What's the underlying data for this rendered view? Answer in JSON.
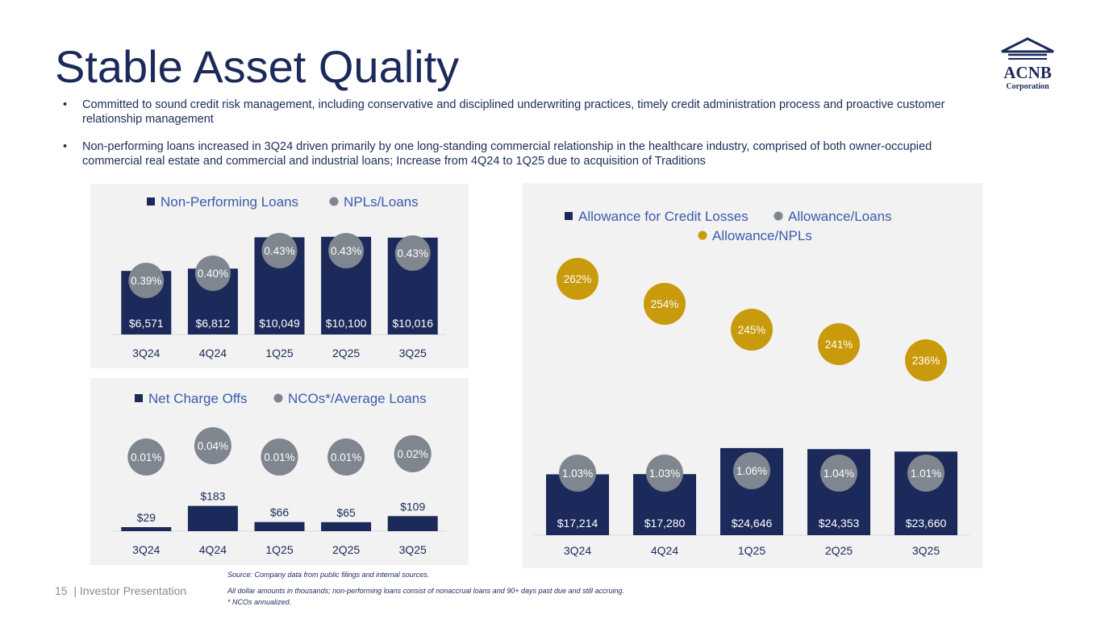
{
  "page": {
    "title": "Stable Asset Quality",
    "bullets": [
      "Committed to sound credit risk management, including conservative and disciplined underwriting practices, timely credit administration process and proactive customer relationship management",
      " Non-performing loans increased in 3Q24 driven primarily by one long-standing commercial relationship in the healthcare industry, comprised of both owner-occupied commercial real estate and commercial and industrial loans; Increase from 4Q24 to 1Q25 due to acquisition of Traditions"
    ],
    "logo": {
      "main": "ACNB",
      "sub": "Corporation"
    },
    "footer": {
      "page_label": "15  | Investor Presentation",
      "notes": [
        "Source: Company data from public filings and internal sources.",
        "All dollar amounts in thousands; non-performing loans consist of nonaccrual loans and 90+ days past due and still accruing.",
        "* NCOs annualized."
      ]
    },
    "colors": {
      "navy": "#1b2a5a",
      "gray_circle": "#7f868f",
      "gold": "#c99a0b",
      "panel_bg": "#f2f2f2"
    }
  },
  "chart_data": [
    {
      "id": "npl",
      "type": "bar",
      "categories": [
        "3Q24",
        "4Q24",
        "1Q25",
        "2Q25",
        "3Q25"
      ],
      "series": [
        {
          "name": "Non-Performing Loans",
          "kind": "bar",
          "values": [
            6571,
            6812,
            10049,
            10100,
            10016
          ],
          "labels": [
            "$6,571",
            "$6,812",
            "$10,049",
            "$10,100",
            "$10,016"
          ]
        },
        {
          "name": "NPLs/Loans",
          "kind": "circle",
          "values": [
            0.39,
            0.4,
            0.43,
            0.43,
            0.43
          ],
          "labels": [
            "0.39%",
            "0.40%",
            "0.43%",
            "0.43%",
            "0.43%"
          ]
        }
      ],
      "legend": "top",
      "ylim": [
        0,
        11000
      ]
    },
    {
      "id": "nco",
      "type": "bar",
      "categories": [
        "3Q24",
        "4Q24",
        "1Q25",
        "2Q25",
        "3Q25"
      ],
      "series": [
        {
          "name": "Net Charge Offs",
          "kind": "bar",
          "values": [
            29,
            183,
            66,
            65,
            109
          ],
          "labels": [
            "$29",
            "$183",
            "$66",
            "$65",
            "$109"
          ]
        },
        {
          "name": "NCOs*/Average Loans",
          "kind": "circle",
          "values": [
            0.01,
            0.04,
            0.01,
            0.01,
            0.02
          ],
          "labels": [
            "0.01%",
            "0.04%",
            "0.01%",
            "0.01%",
            "0.02%"
          ]
        }
      ],
      "legend": "top",
      "ylim": [
        0,
        700
      ]
    },
    {
      "id": "acl",
      "type": "bar",
      "categories": [
        "3Q24",
        "4Q24",
        "1Q25",
        "2Q25",
        "3Q25"
      ],
      "series": [
        {
          "name": "Allowance for Credit Losses",
          "kind": "bar",
          "values": [
            17214,
            17280,
            24646,
            24353,
            23660
          ],
          "labels": [
            "$17,214",
            "$17,280",
            "$24,646",
            "$24,353",
            "$23,660"
          ]
        },
        {
          "name": "Allowance/Loans",
          "kind": "circle",
          "values": [
            1.03,
            1.03,
            1.06,
            1.04,
            1.01
          ],
          "labels": [
            "1.03%",
            "1.03%",
            "1.06%",
            "1.04%",
            "1.01%"
          ]
        },
        {
          "name": "Allowance/NPLs",
          "kind": "gold",
          "values": [
            262,
            254,
            245,
            241,
            236
          ],
          "labels": [
            "262%",
            "254%",
            "245%",
            "241%",
            "236%"
          ]
        }
      ],
      "legend": "top",
      "ylim": [
        0,
        57000
      ]
    }
  ]
}
